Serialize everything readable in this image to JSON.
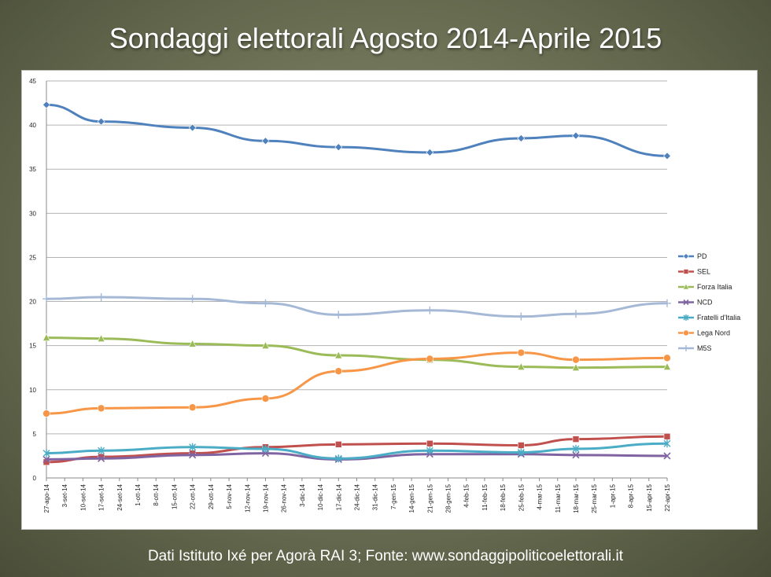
{
  "slide": {
    "title": "Sondaggi elettorali Agosto 2014-Aprile 2015",
    "footer": "Dati Istituto Ixé per Agorà RAI 3; Fonte: www.sondaggipoliticoelettorali.it"
  },
  "chart_data": {
    "type": "line",
    "title": "",
    "xlabel": "",
    "ylabel": "",
    "ylim": [
      0,
      45
    ],
    "yticks": [
      0,
      5,
      10,
      15,
      20,
      25,
      30,
      35,
      40,
      45
    ],
    "grid": "horizontal",
    "legend_position": "right",
    "x_axis_type": "date",
    "x_tick_dates": [
      "2014-08-27",
      "2014-09-03",
      "2014-09-10",
      "2014-09-17",
      "2014-09-24",
      "2014-10-01",
      "2014-10-08",
      "2014-10-15",
      "2014-10-22",
      "2014-10-29",
      "2014-11-05",
      "2014-11-12",
      "2014-11-19",
      "2014-11-26",
      "2014-12-03",
      "2014-12-10",
      "2014-12-17",
      "2014-12-24",
      "2014-12-31",
      "2015-01-07",
      "2015-01-14",
      "2015-01-21",
      "2015-01-28",
      "2015-02-04",
      "2015-02-11",
      "2015-02-18",
      "2015-02-25",
      "2015-03-04",
      "2015-03-11",
      "2015-03-18",
      "2015-03-25",
      "2015-04-01",
      "2015-04-08",
      "2015-04-15",
      "2015-04-22"
    ],
    "x_tick_labels": [
      "27-ago-14",
      "3-set-14",
      "10-set-14",
      "17-set-14",
      "24-set-14",
      "1-ott-14",
      "8-ott-14",
      "15-ott-14",
      "22-ott-14",
      "29-ott-14",
      "5-nov-14",
      "12-nov-14",
      "19-nov-14",
      "26-nov-14",
      "3-dic-14",
      "10-dic-14",
      "17-dic-14",
      "24-dic-14",
      "31-dic-14",
      "7-gen-15",
      "14-gen-15",
      "21-gen-15",
      "28-gen-15",
      "4-feb-15",
      "11-feb-15",
      "18-feb-15",
      "25-feb-15",
      "4-mar-15",
      "11-mar-15",
      "18-mar-15",
      "25-mar-15",
      "1-apr-15",
      "8-apr-15",
      "15-apr-15",
      "22-apr-15"
    ],
    "x": [
      "2014-08-27",
      "2014-09-17",
      "2014-10-22",
      "2014-11-19",
      "2014-12-17",
      "2015-01-21",
      "2015-02-25",
      "2015-03-18",
      "2015-04-22"
    ],
    "series": [
      {
        "name": "PD",
        "color": "#4f81bd",
        "marker": "diamond",
        "values": [
          42.3,
          40.4,
          39.7,
          38.2,
          37.5,
          36.9,
          38.5,
          38.8,
          36.5
        ]
      },
      {
        "name": "SEL",
        "color": "#c0504d",
        "marker": "square",
        "values": [
          1.8,
          2.4,
          2.8,
          3.5,
          3.8,
          3.9,
          3.7,
          4.4,
          4.7
        ]
      },
      {
        "name": "Forza Italia",
        "color": "#9bbb59",
        "marker": "triangle",
        "values": [
          15.9,
          15.8,
          15.2,
          15.0,
          13.9,
          13.4,
          12.6,
          12.5,
          12.6
        ]
      },
      {
        "name": "NCD",
        "color": "#8064a2",
        "marker": "x",
        "values": [
          2.1,
          2.2,
          2.6,
          2.8,
          2.1,
          2.7,
          2.7,
          2.6,
          2.5
        ]
      },
      {
        "name": "Fratelli d'Italia",
        "color": "#4bacc6",
        "marker": "star",
        "values": [
          2.8,
          3.1,
          3.5,
          3.3,
          2.2,
          3.1,
          2.9,
          3.3,
          3.9
        ]
      },
      {
        "name": "Lega Nord",
        "color": "#f79646",
        "marker": "circle",
        "values": [
          7.3,
          7.9,
          8.0,
          9.0,
          12.1,
          13.5,
          14.2,
          13.4,
          13.6
        ]
      },
      {
        "name": "M5S",
        "color": "#a5b9d7",
        "marker": "plus",
        "values": [
          20.3,
          20.5,
          20.3,
          19.8,
          18.5,
          19.0,
          18.3,
          18.6,
          19.8
        ]
      }
    ]
  }
}
